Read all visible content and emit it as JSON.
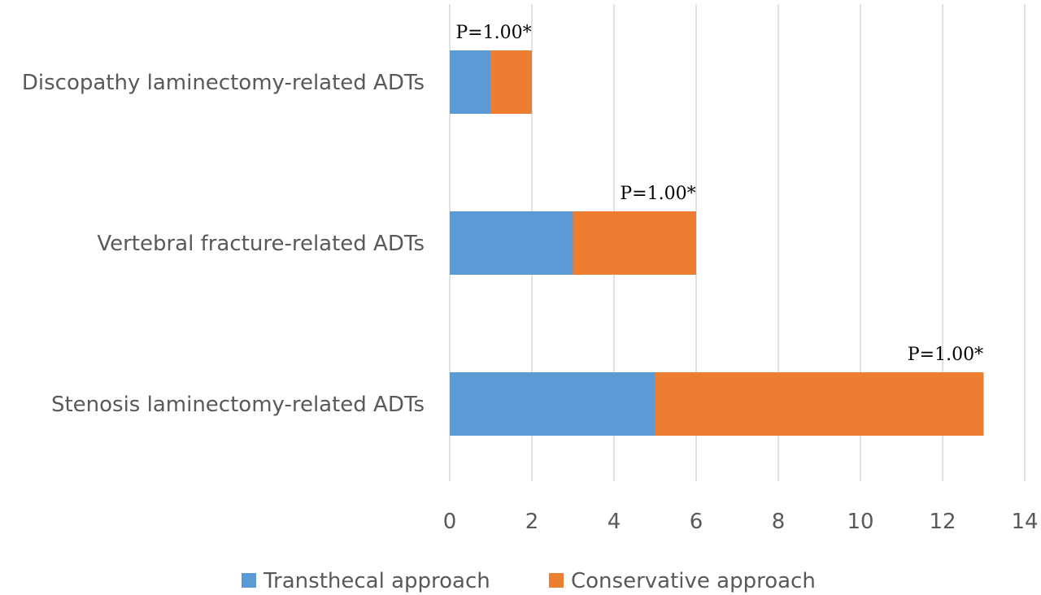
{
  "chart_data": {
    "type": "bar",
    "orientation": "horizontal",
    "stacked": true,
    "categories": [
      "Discopathy laminectomy-related ADTs",
      "Vertebral fracture-related ADTs",
      "Stenosis laminectomy-related ADTs"
    ],
    "series": [
      {
        "name": "Transthecal approach",
        "values": [
          1,
          3,
          5
        ],
        "color": "#5b9bd5"
      },
      {
        "name": "Conservative approach",
        "values": [
          1,
          3,
          8
        ],
        "color": "#ed7d31"
      }
    ],
    "annotations": [
      "P=1.00*",
      "P=1.00*",
      "P=1.00*"
    ],
    "xlim": [
      0,
      14
    ],
    "xticks": [
      "0",
      "2",
      "4",
      "6",
      "8",
      "10",
      "12",
      "14"
    ],
    "title": "",
    "xlabel": "",
    "ylabel": "",
    "grid": "vertical",
    "legend_position": "bottom"
  }
}
